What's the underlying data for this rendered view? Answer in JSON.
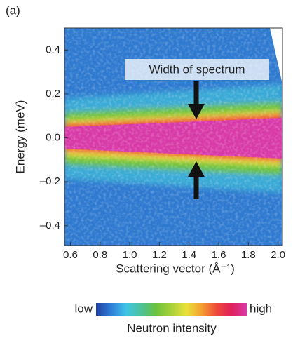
{
  "panel_label": "(a)",
  "chart_data": {
    "type": "heatmap",
    "x_label": "Scattering vector (Å⁻¹)",
    "y_label": "Energy (meV)",
    "annotation": "Width of spectrum",
    "xlim": [
      0.56,
      2.03
    ],
    "ylim": [
      -0.49,
      0.5
    ],
    "xticks": [
      0.6,
      0.8,
      {
        "value": 1,
        "label": "1.0"
      },
      1.2,
      1.4,
      1.6,
      1.8,
      {
        "value": 2,
        "label": "2.0"
      }
    ],
    "yticks": [
      0.4,
      0.2,
      {
        "value": 0,
        "label": "0.0"
      },
      {
        "value": -0.2,
        "label": "–0.2"
      },
      {
        "value": -0.4,
        "label": "–0.4"
      }
    ],
    "colorbar": {
      "low_label": "low",
      "high_label": "high",
      "title": "Neutron intensity",
      "colors": [
        "#1f3fa0",
        "#2f7fd8",
        "#3fc4e6",
        "#4cc39a",
        "#6cc23c",
        "#a8d13a",
        "#e8e23a",
        "#f4a030",
        "#ee4a3a",
        "#e0205a",
        "#d83aa8"
      ]
    }
  }
}
